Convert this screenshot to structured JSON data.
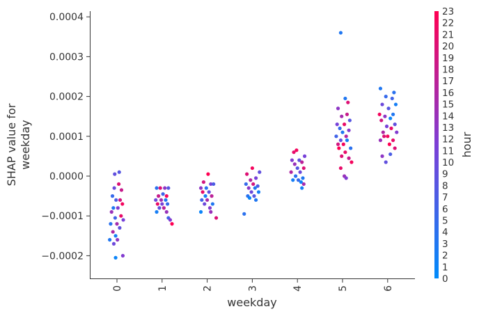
{
  "chart_data": {
    "type": "scatter",
    "title": "",
    "xlabel": "weekday",
    "ylabel": [
      "SHAP value for",
      "weekday"
    ],
    "categories": [
      0,
      1,
      2,
      3,
      4,
      5,
      6
    ],
    "x_tick_labels": [
      "0",
      "1",
      "2",
      "3",
      "4",
      "5",
      "6"
    ],
    "ylim": [
      -0.00026,
      0.00042
    ],
    "y_ticks": [
      -0.0002,
      -0.0001,
      0.0,
      0.0001,
      0.0002,
      0.0003,
      0.0004
    ],
    "y_tick_labels": [
      "−0.0002",
      "−0.0001",
      "0.0000",
      "0.0001",
      "0.0002",
      "0.0003",
      "0.0004"
    ],
    "grid": false,
    "colorbar": {
      "label": "hour",
      "min": 0,
      "max": 23,
      "tick_labels": [
        "0",
        "1",
        "2",
        "3",
        "4",
        "5",
        "6",
        "7",
        "8",
        "9",
        "10",
        "11",
        "12",
        "13",
        "14",
        "15",
        "16",
        "17",
        "18",
        "19",
        "20",
        "21",
        "22",
        "23"
      ],
      "color_low": "#008bfb",
      "color_mid": "#7c3fd6",
      "color_high": "#ff0052"
    },
    "series": [
      {
        "category": 0,
        "points": [
          {
            "dx": -0.05,
            "y": 5e-06,
            "hour": 9
          },
          {
            "dx": 0.05,
            "y": 1e-05,
            "hour": 8
          },
          {
            "dx": -0.06,
            "y": -3e-05,
            "hour": 10
          },
          {
            "dx": 0.04,
            "y": -2e-05,
            "hour": 20
          },
          {
            "dx": 0.1,
            "y": -3.5e-05,
            "hour": 18
          },
          {
            "dx": -0.1,
            "y": -5e-05,
            "hour": 5
          },
          {
            "dx": -0.02,
            "y": -6e-05,
            "hour": 7
          },
          {
            "dx": 0.07,
            "y": -6e-05,
            "hour": 19
          },
          {
            "dx": 0.12,
            "y": -7e-05,
            "hour": 22
          },
          {
            "dx": -0.08,
            "y": -8e-05,
            "hour": 3
          },
          {
            "dx": 0.02,
            "y": -8e-05,
            "hour": 12
          },
          {
            "dx": -0.12,
            "y": -9e-05,
            "hour": 14
          },
          {
            "dx": 0.09,
            "y": -0.0001,
            "hour": 21
          },
          {
            "dx": -0.04,
            "y": -0.000105,
            "hour": 6
          },
          {
            "dx": 0.14,
            "y": -0.00011,
            "hour": 11
          },
          {
            "dx": -0.14,
            "y": -0.00012,
            "hour": 4
          },
          {
            "dx": 0.0,
            "y": -0.00012,
            "hour": 15
          },
          {
            "dx": 0.06,
            "y": -0.00013,
            "hour": 9
          },
          {
            "dx": -0.09,
            "y": -0.00014,
            "hour": 16
          },
          {
            "dx": -0.03,
            "y": -0.00015,
            "hour": 2
          },
          {
            "dx": -0.16,
            "y": -0.00016,
            "hour": 3
          },
          {
            "dx": 0.01,
            "y": -0.00016,
            "hour": 13
          },
          {
            "dx": -0.07,
            "y": -0.00017,
            "hour": 10
          },
          {
            "dx": -0.03,
            "y": -0.000205,
            "hour": 1
          },
          {
            "dx": 0.13,
            "y": -0.0002,
            "hour": 12
          }
        ]
      },
      {
        "category": 1,
        "points": [
          {
            "dx": -0.12,
            "y": -3e-05,
            "hour": 4
          },
          {
            "dx": -0.04,
            "y": -3e-05,
            "hour": 20
          },
          {
            "dx": 0.06,
            "y": -3e-05,
            "hour": 13
          },
          {
            "dx": 0.14,
            "y": -3e-05,
            "hour": 8
          },
          {
            "dx": -0.08,
            "y": -5e-05,
            "hour": 18
          },
          {
            "dx": 0.02,
            "y": -4.5e-05,
            "hour": 6
          },
          {
            "dx": 0.1,
            "y": -5e-05,
            "hour": 22
          },
          {
            "dx": -0.14,
            "y": -6e-05,
            "hour": 10
          },
          {
            "dx": -0.02,
            "y": -6e-05,
            "hour": 15
          },
          {
            "dx": 0.08,
            "y": -6e-05,
            "hour": 3
          },
          {
            "dx": -0.1,
            "y": -7e-05,
            "hour": 21
          },
          {
            "dx": 0.0,
            "y": -7e-05,
            "hour": 11
          },
          {
            "dx": 0.12,
            "y": -7e-05,
            "hour": 5
          },
          {
            "dx": -0.06,
            "y": -8e-05,
            "hour": 9
          },
          {
            "dx": 0.04,
            "y": -8e-05,
            "hour": 17
          },
          {
            "dx": -0.12,
            "y": -9e-05,
            "hour": 2
          },
          {
            "dx": 0.1,
            "y": -9e-05,
            "hour": 14
          },
          {
            "dx": 0.14,
            "y": -0.000105,
            "hour": 6
          },
          {
            "dx": 0.18,
            "y": -0.00011,
            "hour": 12
          },
          {
            "dx": 0.22,
            "y": -0.00012,
            "hour": 23
          }
        ]
      },
      {
        "category": 2,
        "points": [
          {
            "dx": 0.02,
            "y": 5e-06,
            "hour": 23
          },
          {
            "dx": -0.08,
            "y": -1.5e-05,
            "hour": 19
          },
          {
            "dx": 0.08,
            "y": -2e-05,
            "hour": 11
          },
          {
            "dx": -0.14,
            "y": -3e-05,
            "hour": 13
          },
          {
            "dx": -0.02,
            "y": -3e-05,
            "hour": 4
          },
          {
            "dx": 0.14,
            "y": -2e-05,
            "hour": 7
          },
          {
            "dx": -0.1,
            "y": -4e-05,
            "hour": 21
          },
          {
            "dx": 0.04,
            "y": -4e-05,
            "hour": 9
          },
          {
            "dx": -0.04,
            "y": -5e-05,
            "hour": 2
          },
          {
            "dx": 0.1,
            "y": -5e-05,
            "hour": 17
          },
          {
            "dx": -0.12,
            "y": -6e-05,
            "hour": 6
          },
          {
            "dx": 0.0,
            "y": -6e-05,
            "hour": 15
          },
          {
            "dx": 0.12,
            "y": -7e-05,
            "hour": 3
          },
          {
            "dx": -0.06,
            "y": -7e-05,
            "hour": 10
          },
          {
            "dx": 0.06,
            "y": -8e-05,
            "hour": 12
          },
          {
            "dx": -0.14,
            "y": -9e-05,
            "hour": 1
          },
          {
            "dx": 0.08,
            "y": -9e-05,
            "hour": 14
          },
          {
            "dx": 0.2,
            "y": -0.000105,
            "hour": 20
          }
        ]
      },
      {
        "category": 3,
        "points": [
          {
            "dx": 0.0,
            "y": 2e-05,
            "hour": 22
          },
          {
            "dx": 0.16,
            "y": 1e-05,
            "hour": 9
          },
          {
            "dx": -0.12,
            "y": 5e-06,
            "hour": 20
          },
          {
            "dx": -0.04,
            "y": -1e-05,
            "hour": 16
          },
          {
            "dx": 0.08,
            "y": -5e-06,
            "hour": 11
          },
          {
            "dx": -0.14,
            "y": -2e-05,
            "hour": 5
          },
          {
            "dx": 0.02,
            "y": -2e-05,
            "hour": 19
          },
          {
            "dx": 0.12,
            "y": -2.5e-05,
            "hour": 7
          },
          {
            "dx": -0.08,
            "y": -3e-05,
            "hour": 13
          },
          {
            "dx": 0.06,
            "y": -3e-05,
            "hour": 3
          },
          {
            "dx": -0.02,
            "y": -4e-05,
            "hour": 10
          },
          {
            "dx": 0.14,
            "y": -4e-05,
            "hour": 2
          },
          {
            "dx": -0.1,
            "y": -5e-05,
            "hour": 4
          },
          {
            "dx": 0.04,
            "y": -5e-05,
            "hour": 8
          },
          {
            "dx": -0.06,
            "y": -5.5e-05,
            "hour": 1
          },
          {
            "dx": 0.08,
            "y": -6e-05,
            "hour": 3
          },
          {
            "dx": -0.18,
            "y": -9.5e-05,
            "hour": 4
          }
        ]
      },
      {
        "category": 4,
        "points": [
          {
            "dx": -0.02,
            "y": 6.5e-05,
            "hour": 22
          },
          {
            "dx": -0.08,
            "y": 6e-05,
            "hour": 21
          },
          {
            "dx": 0.16,
            "y": 5e-05,
            "hour": 11
          },
          {
            "dx": -0.12,
            "y": 4e-05,
            "hour": 12
          },
          {
            "dx": 0.04,
            "y": 4e-05,
            "hour": 9
          },
          {
            "dx": 0.1,
            "y": 3.5e-05,
            "hour": 17
          },
          {
            "dx": -0.06,
            "y": 3e-05,
            "hour": 14
          },
          {
            "dx": 0.0,
            "y": 2e-05,
            "hour": 8
          },
          {
            "dx": 0.14,
            "y": 2e-05,
            "hour": 20
          },
          {
            "dx": -0.14,
            "y": 1e-05,
            "hour": 16
          },
          {
            "dx": 0.06,
            "y": 1e-05,
            "hour": 10
          },
          {
            "dx": -0.04,
            "y": 0.0,
            "hour": 4
          },
          {
            "dx": 0.12,
            "y": -5e-06,
            "hour": 3
          },
          {
            "dx": -0.1,
            "y": -1e-05,
            "hour": 2
          },
          {
            "dx": 0.02,
            "y": -1e-05,
            "hour": 5
          },
          {
            "dx": 0.08,
            "y": -1.5e-05,
            "hour": 1
          },
          {
            "dx": 0.14,
            "y": -2e-05,
            "hour": 15
          },
          {
            "dx": 0.1,
            "y": -3e-05,
            "hour": 2
          }
        ]
      },
      {
        "category": 5,
        "points": [
          {
            "dx": -0.04,
            "y": 0.00036,
            "hour": 3
          },
          {
            "dx": 0.06,
            "y": 0.000195,
            "hour": 3
          },
          {
            "dx": 0.12,
            "y": 0.000185,
            "hour": 20
          },
          {
            "dx": -0.1,
            "y": 0.00017,
            "hour": 13
          },
          {
            "dx": 0.1,
            "y": 0.000155,
            "hour": 18
          },
          {
            "dx": -0.02,
            "y": 0.00015,
            "hour": 15
          },
          {
            "dx": 0.16,
            "y": 0.00014,
            "hour": 8
          },
          {
            "dx": -0.12,
            "y": 0.00013,
            "hour": 11
          },
          {
            "dx": 0.04,
            "y": 0.00013,
            "hour": 21
          },
          {
            "dx": -0.06,
            "y": 0.00012,
            "hour": 5
          },
          {
            "dx": 0.14,
            "y": 0.000115,
            "hour": 12
          },
          {
            "dx": 0.0,
            "y": 0.00011,
            "hour": 3
          },
          {
            "dx": -0.14,
            "y": 0.0001,
            "hour": 6
          },
          {
            "dx": 0.08,
            "y": 0.0001,
            "hour": 16
          },
          {
            "dx": -0.04,
            "y": 9e-05,
            "hour": 9
          },
          {
            "dx": 0.1,
            "y": 9e-05,
            "hour": 2
          },
          {
            "dx": -0.1,
            "y": 8e-05,
            "hour": 19
          },
          {
            "dx": 0.02,
            "y": 8e-05,
            "hour": 22
          },
          {
            "dx": 0.18,
            "y": 7e-05,
            "hour": 4
          },
          {
            "dx": -0.08,
            "y": 7e-05,
            "hour": 23
          },
          {
            "dx": 0.06,
            "y": 6e-05,
            "hour": 21
          },
          {
            "dx": -0.02,
            "y": 5e-05,
            "hour": 20
          },
          {
            "dx": 0.14,
            "y": 4.5e-05,
            "hour": 18
          },
          {
            "dx": 0.2,
            "y": 3.5e-05,
            "hour": 22
          },
          {
            "dx": -0.04,
            "y": 2e-05,
            "hour": 21
          },
          {
            "dx": 0.04,
            "y": 0.0,
            "hour": 14
          },
          {
            "dx": 0.08,
            "y": -5e-06,
            "hour": 12
          }
        ]
      },
      {
        "category": 6,
        "points": [
          {
            "dx": -0.16,
            "y": 0.00022,
            "hour": 3
          },
          {
            "dx": 0.14,
            "y": 0.00021,
            "hour": 4
          },
          {
            "dx": -0.04,
            "y": 0.0002,
            "hour": 5
          },
          {
            "dx": 0.1,
            "y": 0.000195,
            "hour": 6
          },
          {
            "dx": -0.12,
            "y": 0.00018,
            "hour": 10
          },
          {
            "dx": 0.18,
            "y": 0.00018,
            "hour": 2
          },
          {
            "dx": 0.02,
            "y": 0.00017,
            "hour": 8
          },
          {
            "dx": -0.18,
            "y": 0.000155,
            "hour": 22
          },
          {
            "dx": 0.12,
            "y": 0.000155,
            "hour": 3
          },
          {
            "dx": -0.06,
            "y": 0.00015,
            "hour": 13
          },
          {
            "dx": 0.06,
            "y": 0.000145,
            "hour": 1
          },
          {
            "dx": -0.14,
            "y": 0.00014,
            "hour": 19
          },
          {
            "dx": 0.16,
            "y": 0.00013,
            "hour": 9
          },
          {
            "dx": -0.02,
            "y": 0.000125,
            "hour": 11
          },
          {
            "dx": 0.08,
            "y": 0.00012,
            "hour": 21
          },
          {
            "dx": -0.1,
            "y": 0.00011,
            "hour": 16
          },
          {
            "dx": 0.2,
            "y": 0.00011,
            "hour": 12
          },
          {
            "dx": 0.0,
            "y": 0.0001,
            "hour": 22
          },
          {
            "dx": -0.08,
            "y": 0.0001,
            "hour": 20
          },
          {
            "dx": 0.12,
            "y": 9e-05,
            "hour": 21
          },
          {
            "dx": -0.16,
            "y": 9e-05,
            "hour": 14
          },
          {
            "dx": 0.04,
            "y": 8e-05,
            "hour": 23
          },
          {
            "dx": 0.16,
            "y": 7e-05,
            "hour": 20
          },
          {
            "dx": -0.12,
            "y": 5e-05,
            "hour": 13
          },
          {
            "dx": 0.06,
            "y": 5.5e-05,
            "hour": 7
          },
          {
            "dx": -0.04,
            "y": 3.5e-05,
            "hour": 9
          }
        ]
      }
    ]
  }
}
